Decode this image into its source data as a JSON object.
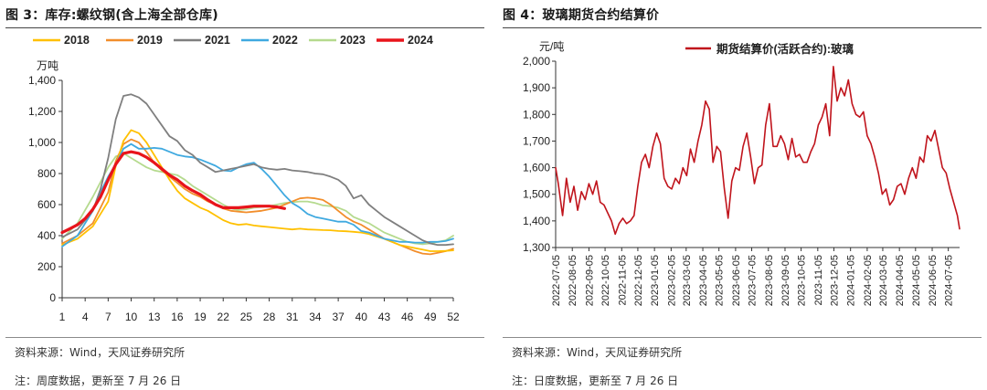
{
  "figures": [
    {
      "title": "图 3：库存:螺纹钢(含上海全部仓库)",
      "source": "资料来源：Wind，天风证券研究所",
      "note": "注：周度数据，更新至 7 月 26 日"
    },
    {
      "title": "图 4：玻璃期货合约结算价",
      "source": "资料来源：Wind，天风证券研究所",
      "note": "注：日度数据，更新至 7 月 26 日"
    }
  ],
  "chart_data": [
    {
      "type": "line",
      "title": "",
      "ylabel": "万吨",
      "xlabel": "",
      "ylim": [
        0,
        1400
      ],
      "xlim": [
        1,
        52
      ],
      "yticks": [
        0,
        200,
        400,
        600,
        800,
        1000,
        1200,
        1400
      ],
      "ytick_labels": [
        "0",
        "200",
        "400",
        "600",
        "800",
        "1,000",
        "1,200",
        "1,400"
      ],
      "xticks": [
        1,
        4,
        7,
        10,
        13,
        16,
        19,
        22,
        25,
        28,
        31,
        34,
        37,
        40,
        43,
        46,
        49,
        52
      ],
      "legend_position": "top",
      "grid": false,
      "series": [
        {
          "name": "2018",
          "color": "#FFC000",
          "x": [
            1,
            3,
            5,
            7,
            8,
            9,
            10,
            11,
            12,
            13,
            14,
            15,
            16,
            17,
            18,
            19,
            20,
            21,
            22,
            23,
            24,
            25,
            26,
            27,
            28,
            29,
            30,
            31,
            32,
            33,
            34,
            35,
            36,
            37,
            38,
            39,
            40,
            41,
            42,
            43,
            44,
            45,
            46,
            47,
            48,
            49,
            50,
            51,
            52
          ],
          "values": [
            340,
            380,
            460,
            620,
            850,
            1010,
            1080,
            1060,
            1000,
            920,
            840,
            760,
            690,
            640,
            610,
            580,
            560,
            530,
            500,
            480,
            470,
            475,
            465,
            460,
            455,
            450,
            445,
            440,
            445,
            440,
            438,
            436,
            435,
            430,
            428,
            425,
            420,
            410,
            395,
            380,
            360,
            340,
            330,
            320,
            310,
            300,
            300,
            302,
            305
          ]
        },
        {
          "name": "2019",
          "color": "#F28E2B",
          "x": [
            1,
            3,
            5,
            7,
            8,
            9,
            10,
            11,
            12,
            13,
            14,
            15,
            16,
            17,
            18,
            19,
            20,
            21,
            22,
            23,
            24,
            25,
            26,
            27,
            28,
            29,
            30,
            31,
            32,
            33,
            34,
            35,
            36,
            37,
            38,
            39,
            40,
            41,
            42,
            43,
            44,
            45,
            46,
            47,
            48,
            49,
            50,
            51,
            52
          ],
          "values": [
            350,
            400,
            480,
            680,
            880,
            990,
            1020,
            1000,
            940,
            870,
            820,
            780,
            740,
            700,
            670,
            650,
            620,
            600,
            575,
            560,
            555,
            550,
            555,
            560,
            570,
            580,
            600,
            620,
            640,
            645,
            640,
            630,
            600,
            560,
            520,
            490,
            470,
            440,
            410,
            380,
            360,
            340,
            320,
            300,
            285,
            280,
            290,
            300,
            315
          ]
        },
        {
          "name": "2021",
          "color": "#7F7F7F",
          "x": [
            1,
            3,
            5,
            6,
            7,
            8,
            9,
            10,
            11,
            12,
            13,
            14,
            15,
            16,
            17,
            18,
            19,
            20,
            21,
            22,
            23,
            24,
            25,
            26,
            27,
            28,
            29,
            30,
            31,
            32,
            33,
            34,
            35,
            36,
            37,
            38,
            39,
            40,
            41,
            42,
            43,
            44,
            45,
            46,
            47,
            48,
            49,
            50,
            51,
            52
          ],
          "values": [
            390,
            440,
            560,
            700,
            900,
            1150,
            1300,
            1310,
            1290,
            1250,
            1180,
            1110,
            1040,
            1010,
            950,
            920,
            870,
            840,
            810,
            820,
            830,
            840,
            850,
            860,
            840,
            830,
            825,
            830,
            820,
            815,
            810,
            800,
            795,
            780,
            760,
            720,
            640,
            660,
            600,
            560,
            520,
            490,
            460,
            430,
            400,
            370,
            350,
            340,
            340,
            345
          ]
        },
        {
          "name": "2022",
          "color": "#3FA9E0",
          "x": [
            1,
            3,
            5,
            6,
            7,
            8,
            9,
            10,
            11,
            12,
            13,
            14,
            15,
            16,
            17,
            18,
            19,
            20,
            21,
            22,
            23,
            24,
            25,
            26,
            27,
            28,
            29,
            30,
            31,
            32,
            33,
            34,
            35,
            36,
            37,
            38,
            39,
            40,
            41,
            42,
            43,
            44,
            45,
            46,
            47,
            48,
            49,
            50,
            51,
            52
          ],
          "values": [
            330,
            400,
            560,
            680,
            780,
            860,
            960,
            990,
            960,
            960,
            965,
            960,
            940,
            920,
            910,
            905,
            890,
            870,
            850,
            820,
            815,
            840,
            860,
            870,
            830,
            780,
            720,
            660,
            610,
            580,
            540,
            520,
            510,
            500,
            490,
            490,
            470,
            430,
            420,
            400,
            380,
            370,
            360,
            360,
            355,
            355,
            360,
            360,
            365,
            380
          ]
        },
        {
          "name": "2023",
          "color": "#B5DA8E",
          "x": [
            1,
            3,
            5,
            7,
            8,
            9,
            10,
            11,
            12,
            13,
            14,
            15,
            16,
            17,
            18,
            19,
            20,
            21,
            22,
            23,
            24,
            25,
            26,
            27,
            28,
            29,
            30,
            31,
            32,
            33,
            34,
            35,
            36,
            37,
            38,
            39,
            40,
            41,
            42,
            43,
            44,
            45,
            46,
            47,
            48,
            49,
            50,
            51,
            52
          ],
          "values": [
            380,
            480,
            650,
            840,
            910,
            930,
            900,
            870,
            840,
            820,
            810,
            800,
            790,
            760,
            720,
            690,
            660,
            630,
            600,
            575,
            565,
            570,
            580,
            585,
            590,
            600,
            610,
            615,
            620,
            620,
            610,
            595,
            590,
            580,
            560,
            520,
            500,
            480,
            450,
            420,
            400,
            380,
            360,
            350,
            345,
            350,
            360,
            370,
            400
          ]
        },
        {
          "name": "2024",
          "color": "#E8141B",
          "x": [
            1,
            2,
            3,
            4,
            5,
            6,
            7,
            8,
            9,
            10,
            11,
            12,
            13,
            14,
            15,
            16,
            17,
            18,
            19,
            20,
            21,
            22,
            23,
            24,
            25,
            26,
            27,
            28,
            29,
            30
          ],
          "values": [
            420,
            445,
            470,
            510,
            570,
            650,
            760,
            860,
            930,
            940,
            930,
            905,
            870,
            830,
            790,
            760,
            720,
            690,
            665,
            630,
            600,
            580,
            580,
            580,
            585,
            590,
            590,
            590,
            585,
            575
          ]
        }
      ]
    },
    {
      "type": "line",
      "title": "",
      "ylabel": "元/吨",
      "xlabel": "",
      "ylim": [
        1300,
        2000
      ],
      "yticks": [
        1300,
        1400,
        1500,
        1600,
        1700,
        1800,
        1900,
        2000
      ],
      "ytick_labels": [
        "1,300",
        "1,400",
        "1,500",
        "1,600",
        "1,700",
        "1,800",
        "1,900",
        "2,000"
      ],
      "x_axis": "date",
      "xlim": [
        "2022-07-05",
        "2024-07-26"
      ],
      "xticks": [
        "2022-07-05",
        "2022-08-05",
        "2022-09-05",
        "2022-10-05",
        "2022-11-05",
        "2022-12-05",
        "2023-01-05",
        "2023-02-05",
        "2023-03-05",
        "2023-04-05",
        "2023-05-05",
        "2023-06-05",
        "2023-07-05",
        "2023-08-05",
        "2023-09-05",
        "2023-10-05",
        "2023-11-05",
        "2023-12-05",
        "2024-01-05",
        "2024-02-05",
        "2024-03-05",
        "2024-04-05",
        "2024-05-05",
        "2024-06-05",
        "2024-07-05"
      ],
      "legend_position": "top",
      "grid": false,
      "series": [
        {
          "name": "期货结算价(活跃合约):玻璃",
          "color": "#C0141C",
          "x": [
            "2022-07-05",
            "2022-07-10",
            "2022-07-18",
            "2022-07-25",
            "2022-08-01",
            "2022-08-08",
            "2022-08-15",
            "2022-08-22",
            "2022-08-29",
            "2022-09-05",
            "2022-09-12",
            "2022-09-19",
            "2022-09-26",
            "2022-10-03",
            "2022-10-10",
            "2022-10-17",
            "2022-10-24",
            "2022-10-31",
            "2022-11-07",
            "2022-11-14",
            "2022-11-21",
            "2022-11-28",
            "2022-12-05",
            "2022-12-12",
            "2022-12-19",
            "2022-12-26",
            "2023-01-02",
            "2023-01-09",
            "2023-01-16",
            "2023-01-23",
            "2023-01-30",
            "2023-02-06",
            "2023-02-13",
            "2023-02-20",
            "2023-02-27",
            "2023-03-06",
            "2023-03-13",
            "2023-03-20",
            "2023-03-27",
            "2023-04-03",
            "2023-04-10",
            "2023-04-17",
            "2023-04-24",
            "2023-05-01",
            "2023-05-08",
            "2023-05-15",
            "2023-05-22",
            "2023-05-29",
            "2023-06-05",
            "2023-06-12",
            "2023-06-19",
            "2023-06-26",
            "2023-07-03",
            "2023-07-10",
            "2023-07-17",
            "2023-07-24",
            "2023-07-31",
            "2023-08-07",
            "2023-08-14",
            "2023-08-21",
            "2023-08-28",
            "2023-09-04",
            "2023-09-11",
            "2023-09-18",
            "2023-09-25",
            "2023-10-02",
            "2023-10-09",
            "2023-10-16",
            "2023-10-23",
            "2023-10-30",
            "2023-11-06",
            "2023-11-13",
            "2023-11-20",
            "2023-11-27",
            "2023-12-04",
            "2023-12-11",
            "2023-12-18",
            "2023-12-25",
            "2024-01-01",
            "2024-01-08",
            "2024-01-15",
            "2024-01-22",
            "2024-01-29",
            "2024-02-05",
            "2024-02-12",
            "2024-02-19",
            "2024-02-26",
            "2024-03-04",
            "2024-03-11",
            "2024-03-18",
            "2024-03-25",
            "2024-04-01",
            "2024-04-08",
            "2024-04-15",
            "2024-04-22",
            "2024-04-29",
            "2024-05-06",
            "2024-05-13",
            "2024-05-20",
            "2024-05-27",
            "2024-06-03",
            "2024-06-10",
            "2024-06-17",
            "2024-06-24",
            "2024-07-01",
            "2024-07-08",
            "2024-07-15",
            "2024-07-22",
            "2024-07-26"
          ],
          "values": [
            1600,
            1540,
            1420,
            1560,
            1470,
            1530,
            1440,
            1510,
            1480,
            1540,
            1500,
            1550,
            1470,
            1460,
            1430,
            1400,
            1350,
            1390,
            1410,
            1390,
            1400,
            1420,
            1530,
            1620,
            1650,
            1600,
            1680,
            1730,
            1690,
            1560,
            1530,
            1520,
            1560,
            1540,
            1600,
            1570,
            1670,
            1620,
            1700,
            1760,
            1850,
            1820,
            1620,
            1680,
            1660,
            1520,
            1410,
            1550,
            1600,
            1590,
            1680,
            1730,
            1640,
            1540,
            1600,
            1610,
            1760,
            1840,
            1680,
            1680,
            1720,
            1690,
            1630,
            1710,
            1640,
            1650,
            1620,
            1620,
            1660,
            1690,
            1760,
            1790,
            1840,
            1720,
            1980,
            1850,
            1900,
            1870,
            1930,
            1840,
            1800,
            1790,
            1810,
            1720,
            1690,
            1640,
            1580,
            1500,
            1520,
            1460,
            1480,
            1530,
            1540,
            1500,
            1560,
            1600,
            1560,
            1640,
            1620,
            1720,
            1700,
            1740,
            1670,
            1600,
            1580,
            1520,
            1470,
            1420,
            1370
          ]
        }
      ]
    }
  ]
}
